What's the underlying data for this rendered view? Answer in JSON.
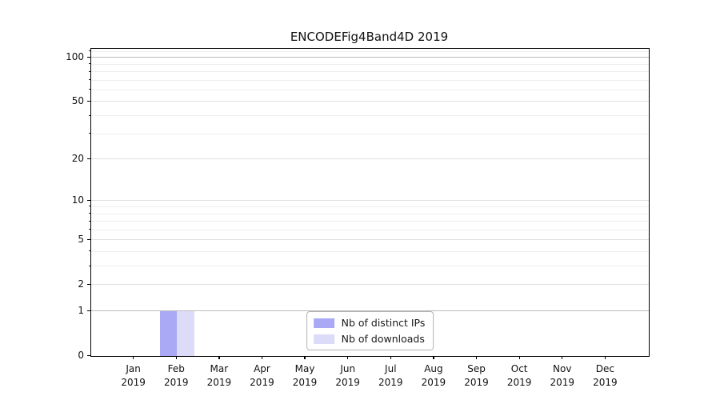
{
  "chart_data": {
    "type": "bar",
    "title": "ENCODEFig4Band4D 2019",
    "categories": [
      "Jan 2019",
      "Feb 2019",
      "Mar 2019",
      "Apr 2019",
      "May 2019",
      "Jun 2019",
      "Jul 2019",
      "Aug 2019",
      "Sep 2019",
      "Oct 2019",
      "Nov 2019",
      "Dec 2019"
    ],
    "series": [
      {
        "name": "Nb of distinct IPs",
        "color": "#a9a9f5",
        "values": [
          0,
          1,
          0,
          0,
          0,
          0,
          0,
          0,
          0,
          0,
          0,
          0
        ]
      },
      {
        "name": "Nb of downloads",
        "color": "#dcdcf8",
        "values": [
          0,
          1,
          0,
          0,
          0,
          0,
          0,
          0,
          0,
          0,
          0,
          0
        ]
      }
    ],
    "xlabel": "",
    "ylabel": "",
    "y_scale": "log1p",
    "ylim": [
      0,
      115
    ],
    "y_ticks": [
      100,
      50,
      20,
      10,
      5,
      2,
      1,
      0
    ],
    "y_decade_lines": [
      100,
      1
    ],
    "y_minor_ticks": [
      110,
      90,
      80,
      70,
      60,
      40,
      30,
      9,
      8,
      7,
      6,
      4,
      3
    ],
    "grid": "both",
    "legend_position": "lower center"
  }
}
